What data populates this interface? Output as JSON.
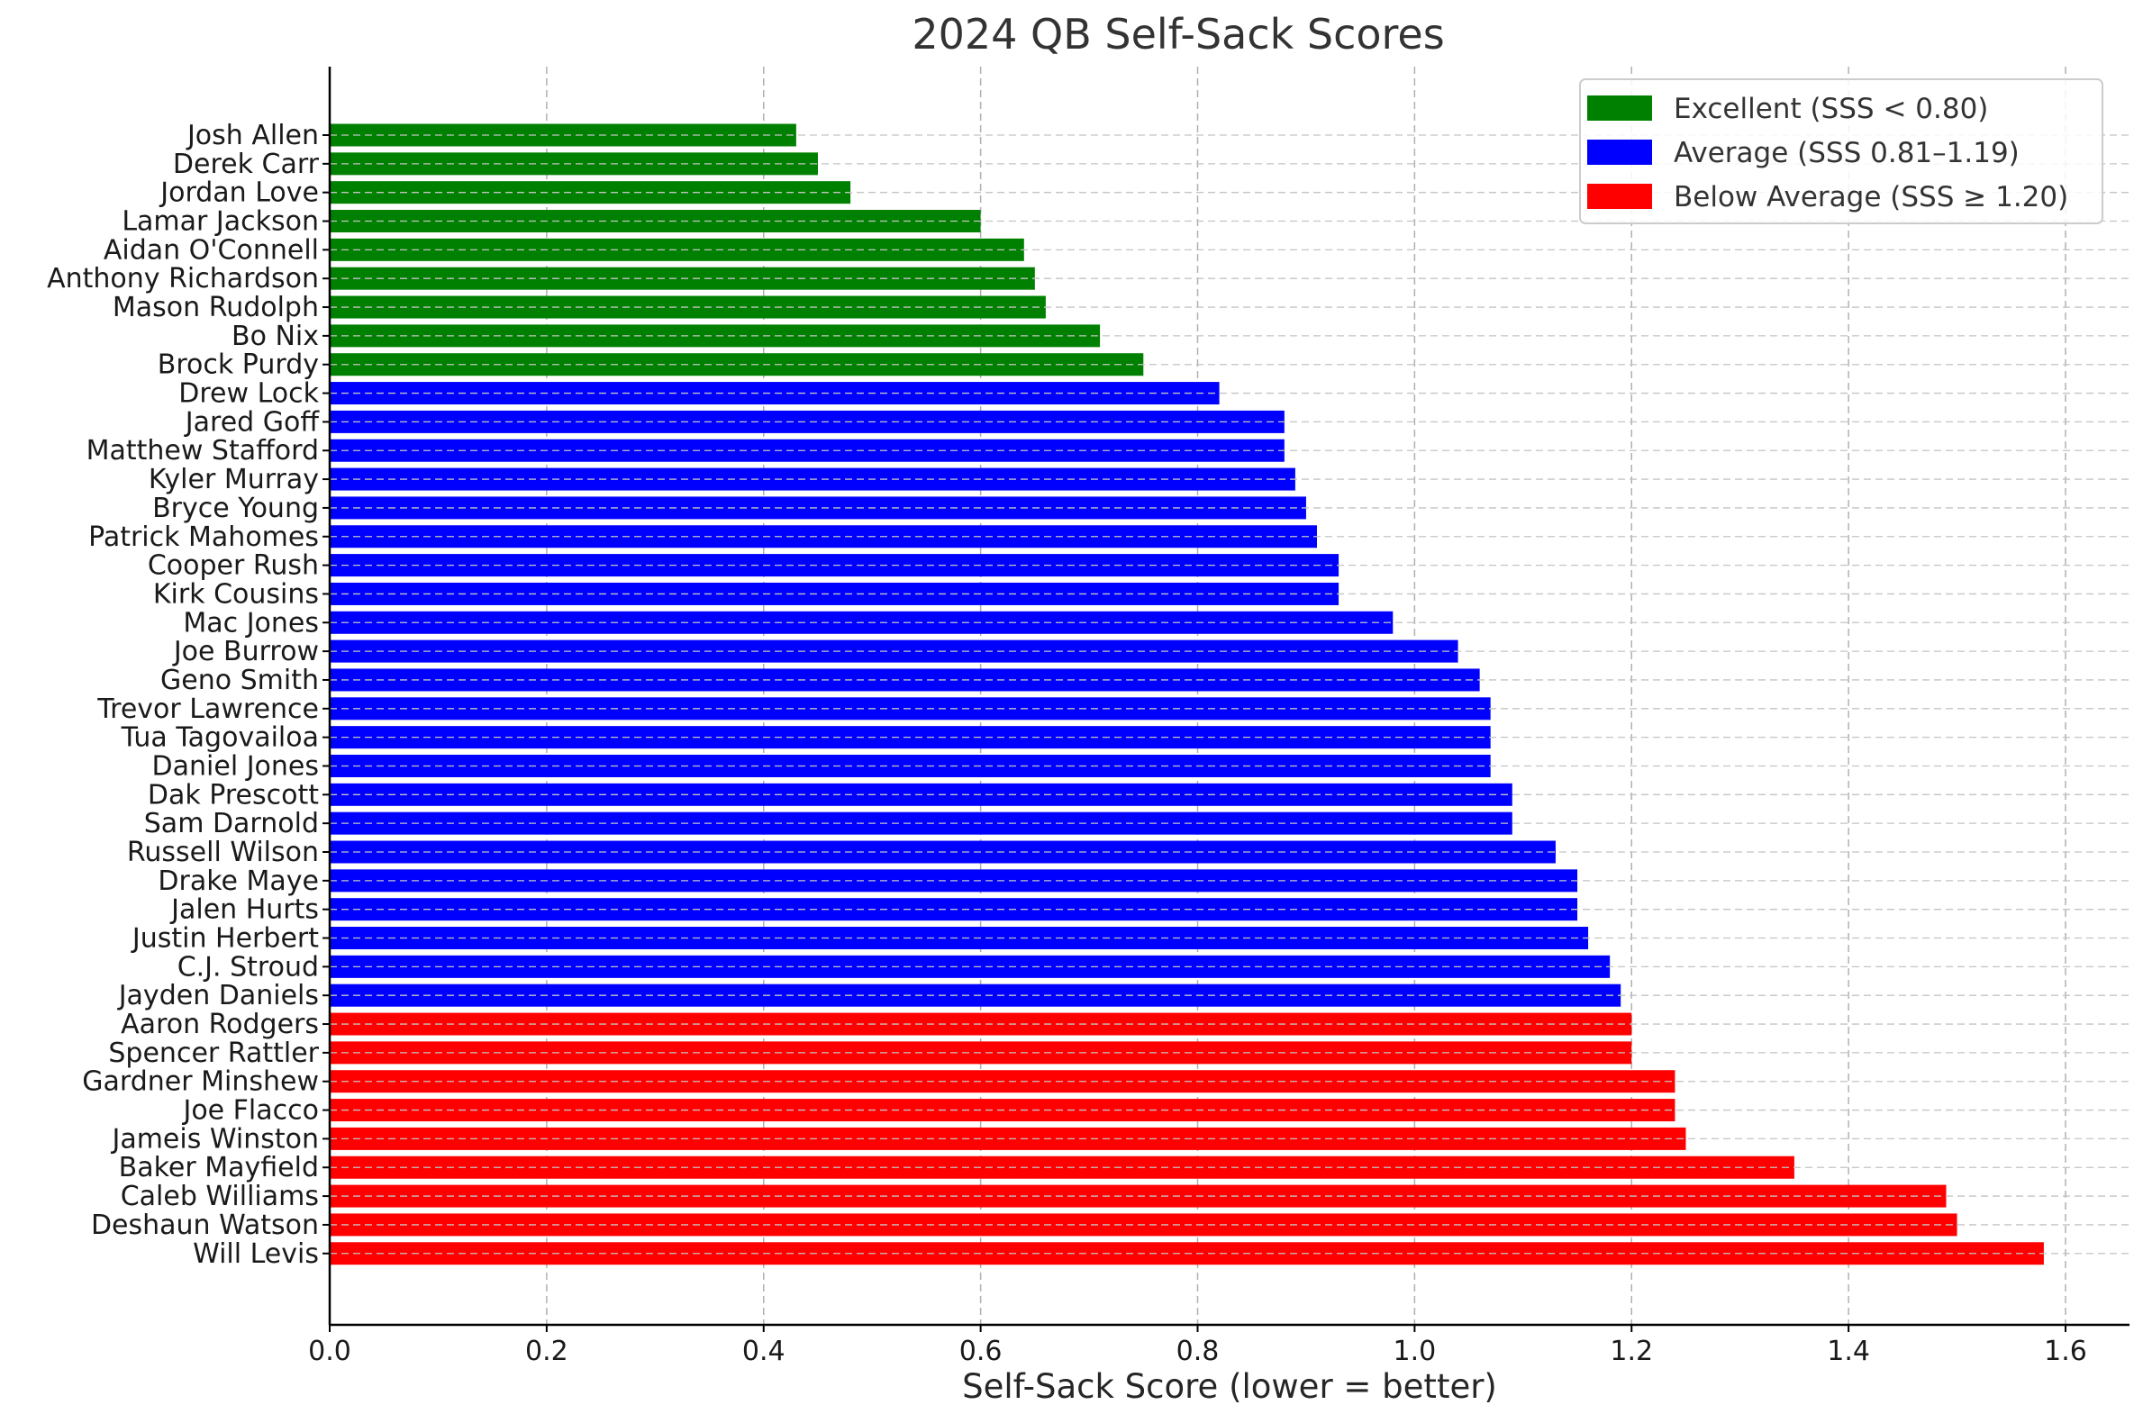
{
  "chart_data": {
    "type": "bar",
    "orientation": "horizontal",
    "title": "2024 QB Self-Sack Scores",
    "xlabel": "Self-Sack Score (lower = better)",
    "ylabel": "",
    "xlim": [
      0,
      1.655
    ],
    "xticks": [
      "0.0",
      "0.2",
      "0.4",
      "0.6",
      "0.8",
      "1.0",
      "1.2",
      "1.4",
      "1.6"
    ],
    "grid": true,
    "legend_position": "top-right",
    "legend": [
      {
        "label": "Excellent (SSS < 0.80)",
        "color": "#008000"
      },
      {
        "label": "Average (SSS 0.81–1.19)",
        "color": "#0000ff"
      },
      {
        "label": "Below Average (SSS ≥ 1.20)",
        "color": "#ff0000"
      }
    ],
    "bars": [
      {
        "name": "Josh Allen",
        "value": 0.43,
        "color": "#008000"
      },
      {
        "name": "Derek Carr",
        "value": 0.45,
        "color": "#008000"
      },
      {
        "name": "Jordan Love",
        "value": 0.48,
        "color": "#008000"
      },
      {
        "name": "Lamar Jackson",
        "value": 0.6,
        "color": "#008000"
      },
      {
        "name": "Aidan O'Connell",
        "value": 0.64,
        "color": "#008000"
      },
      {
        "name": "Anthony Richardson",
        "value": 0.65,
        "color": "#008000"
      },
      {
        "name": "Mason Rudolph",
        "value": 0.66,
        "color": "#008000"
      },
      {
        "name": "Bo Nix",
        "value": 0.71,
        "color": "#008000"
      },
      {
        "name": "Brock Purdy",
        "value": 0.75,
        "color": "#008000"
      },
      {
        "name": "Drew Lock",
        "value": 0.82,
        "color": "#0000ff"
      },
      {
        "name": "Jared Goff",
        "value": 0.88,
        "color": "#0000ff"
      },
      {
        "name": "Matthew Stafford",
        "value": 0.88,
        "color": "#0000ff"
      },
      {
        "name": "Kyler Murray",
        "value": 0.89,
        "color": "#0000ff"
      },
      {
        "name": "Bryce Young",
        "value": 0.9,
        "color": "#0000ff"
      },
      {
        "name": "Patrick Mahomes",
        "value": 0.91,
        "color": "#0000ff"
      },
      {
        "name": "Cooper Rush",
        "value": 0.93,
        "color": "#0000ff"
      },
      {
        "name": "Kirk Cousins",
        "value": 0.93,
        "color": "#0000ff"
      },
      {
        "name": "Mac Jones",
        "value": 0.98,
        "color": "#0000ff"
      },
      {
        "name": "Joe Burrow",
        "value": 1.04,
        "color": "#0000ff"
      },
      {
        "name": "Geno Smith",
        "value": 1.06,
        "color": "#0000ff"
      },
      {
        "name": "Trevor Lawrence",
        "value": 1.07,
        "color": "#0000ff"
      },
      {
        "name": "Tua Tagovailoa",
        "value": 1.07,
        "color": "#0000ff"
      },
      {
        "name": "Daniel Jones",
        "value": 1.07,
        "color": "#0000ff"
      },
      {
        "name": "Dak Prescott",
        "value": 1.09,
        "color": "#0000ff"
      },
      {
        "name": "Sam Darnold",
        "value": 1.09,
        "color": "#0000ff"
      },
      {
        "name": "Russell Wilson",
        "value": 1.13,
        "color": "#0000ff"
      },
      {
        "name": "Drake Maye",
        "value": 1.15,
        "color": "#0000ff"
      },
      {
        "name": "Jalen Hurts",
        "value": 1.15,
        "color": "#0000ff"
      },
      {
        "name": "Justin Herbert",
        "value": 1.16,
        "color": "#0000ff"
      },
      {
        "name": "C.J. Stroud",
        "value": 1.18,
        "color": "#0000ff"
      },
      {
        "name": "Jayden Daniels",
        "value": 1.19,
        "color": "#0000ff"
      },
      {
        "name": "Aaron Rodgers",
        "value": 1.2,
        "color": "#ff0000"
      },
      {
        "name": "Spencer Rattler",
        "value": 1.2,
        "color": "#ff0000"
      },
      {
        "name": "Gardner Minshew",
        "value": 1.24,
        "color": "#ff0000"
      },
      {
        "name": "Joe Flacco",
        "value": 1.24,
        "color": "#ff0000"
      },
      {
        "name": "Jameis Winston",
        "value": 1.25,
        "color": "#ff0000"
      },
      {
        "name": "Baker Mayfield",
        "value": 1.35,
        "color": "#ff0000"
      },
      {
        "name": "Caleb Williams",
        "value": 1.49,
        "color": "#ff0000"
      },
      {
        "name": "Deshaun Watson",
        "value": 1.5,
        "color": "#ff0000"
      },
      {
        "name": "Will Levis",
        "value": 1.58,
        "color": "#ff0000"
      }
    ]
  }
}
